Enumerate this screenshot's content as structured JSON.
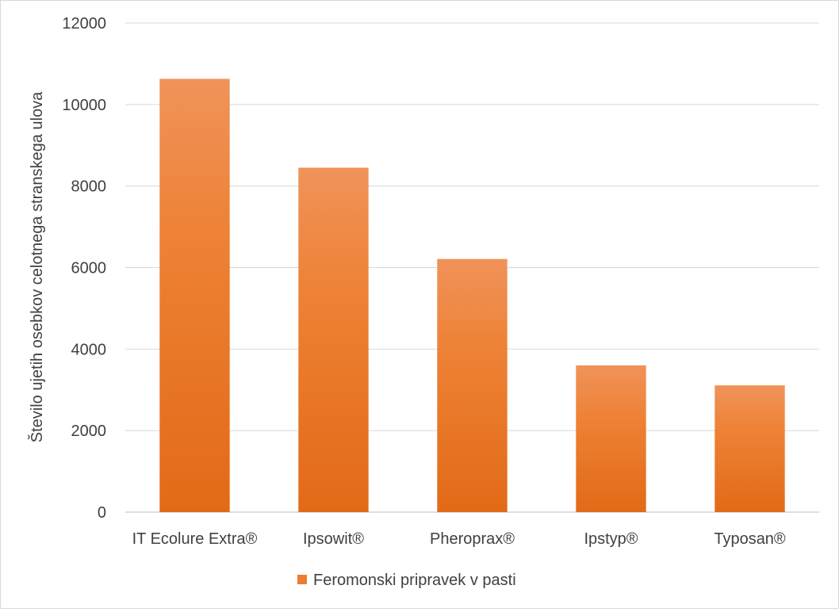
{
  "chart_data": {
    "type": "bar",
    "title": "",
    "xlabel": "",
    "ylabel": "Število ujetih osebkov celotnega stranskega ulova",
    "categories": [
      "IT Ecolure Extra®",
      "Ipsowit®",
      "Pheroprax®",
      "Ipstyp®",
      "Typosan®"
    ],
    "series": [
      {
        "name": "Feromonski pripravek v pasti",
        "values": [
          10630,
          8450,
          6210,
          3600,
          3110
        ],
        "color": "#ED7D31"
      }
    ],
    "ylim": [
      0,
      12000
    ],
    "yticks": [
      0,
      2000,
      4000,
      6000,
      8000,
      10000,
      12000
    ],
    "grid": true,
    "legend": "bottom"
  }
}
